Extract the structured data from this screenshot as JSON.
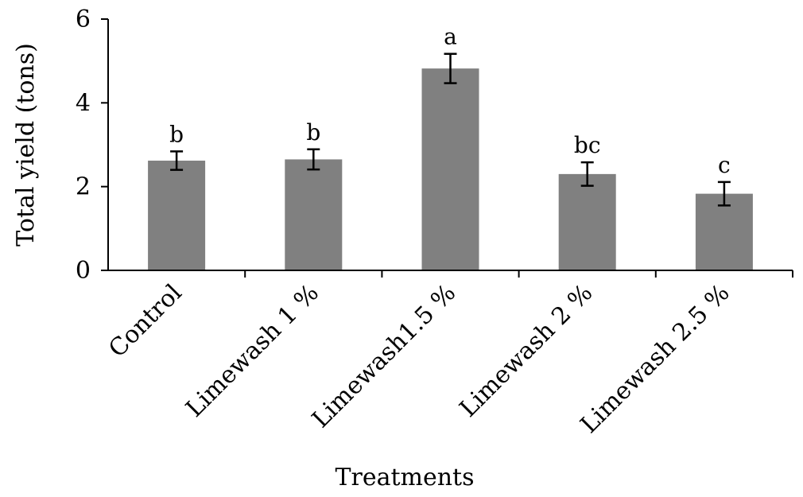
{
  "chart_data": {
    "type": "bar",
    "title": "",
    "xlabel": "Treatments",
    "ylabel": "Total yield (tons)",
    "categories": [
      "Control",
      "Limewash 1 %",
      "Limewash1.5 %",
      "Limewash 2 %",
      "Limewash 2.5 %"
    ],
    "values": [
      2.62,
      2.65,
      4.82,
      2.3,
      1.83
    ],
    "error": [
      0.22,
      0.24,
      0.35,
      0.28,
      0.28
    ],
    "significance_letters": [
      "b",
      "b",
      "a",
      "bc",
      "c"
    ],
    "ylim": [
      0,
      6
    ],
    "yticks": [
      0,
      2,
      4,
      6
    ],
    "bar_color": "#808080",
    "error_bar_color": "#000000",
    "grid": false,
    "legend": "none"
  }
}
